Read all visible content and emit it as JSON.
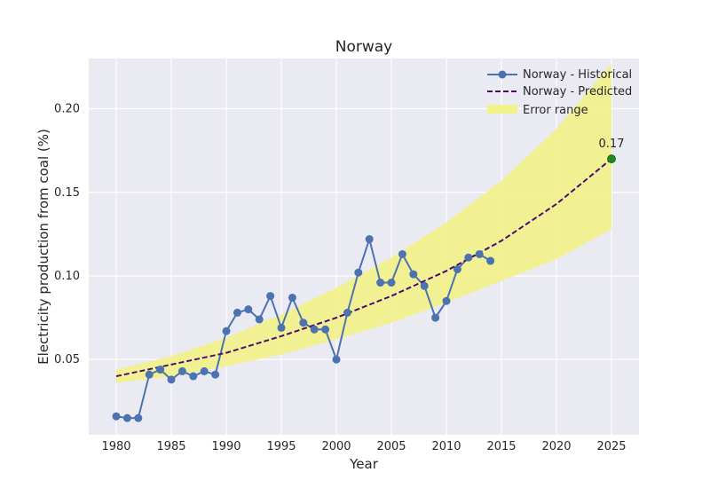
{
  "chart_data": {
    "type": "line",
    "title": "Norway",
    "xlabel": "Year",
    "ylabel": "Electricity production from coal (%)",
    "xlim": [
      1977.5,
      2027.5
    ],
    "ylim": [
      0.005,
      0.23
    ],
    "x_ticks": [
      1980,
      1985,
      1990,
      1995,
      2000,
      2005,
      2010,
      2015,
      2020,
      2025
    ],
    "y_ticks": [
      0.05,
      0.1,
      0.15,
      0.2
    ],
    "y_tick_labels": [
      "0.05",
      "0.10",
      "0.15",
      "0.20"
    ],
    "grid": true,
    "legend_position": "top-right",
    "series": [
      {
        "name": "Norway - Historical",
        "style": "line-markers",
        "color": "#4c72b0",
        "x": [
          1980,
          1981,
          1982,
          1983,
          1984,
          1985,
          1986,
          1987,
          1988,
          1989,
          1990,
          1991,
          1992,
          1993,
          1994,
          1995,
          1996,
          1997,
          1998,
          1999,
          2000,
          2001,
          2002,
          2003,
          2004,
          2005,
          2006,
          2007,
          2008,
          2009,
          2010,
          2011,
          2012,
          2013,
          2014
        ],
        "y": [
          0.016,
          0.015,
          0.015,
          0.041,
          0.044,
          0.038,
          0.043,
          0.04,
          0.043,
          0.041,
          0.067,
          0.078,
          0.08,
          0.074,
          0.088,
          0.069,
          0.087,
          0.072,
          0.068,
          0.068,
          0.05,
          0.078,
          0.102,
          0.122,
          0.096,
          0.096,
          0.113,
          0.101,
          0.094,
          0.075,
          0.085,
          0.104,
          0.111,
          0.113,
          0.109
        ]
      },
      {
        "name": "Norway - Predicted",
        "style": "dashed",
        "color": "#4b0a6e",
        "x": [
          1980,
          1985,
          1990,
          1995,
          2000,
          2005,
          2010,
          2015,
          2020,
          2025
        ],
        "y": [
          0.04,
          0.047,
          0.054,
          0.064,
          0.075,
          0.088,
          0.103,
          0.121,
          0.143,
          0.17
        ]
      }
    ],
    "error_band": {
      "name": "Error range",
      "color": "#f2f28a",
      "x": [
        1980,
        1985,
        1990,
        1995,
        2000,
        2005,
        2010,
        2015,
        2020,
        2025
      ],
      "lower": [
        0.036,
        0.04,
        0.046,
        0.053,
        0.062,
        0.072,
        0.084,
        0.097,
        0.11,
        0.128
      ],
      "upper": [
        0.044,
        0.052,
        0.063,
        0.077,
        0.093,
        0.111,
        0.132,
        0.157,
        0.188,
        0.227
      ]
    },
    "endpoint": {
      "x": 2025,
      "y": 0.17,
      "label": "0.17",
      "color": "#1f8a1f"
    }
  }
}
